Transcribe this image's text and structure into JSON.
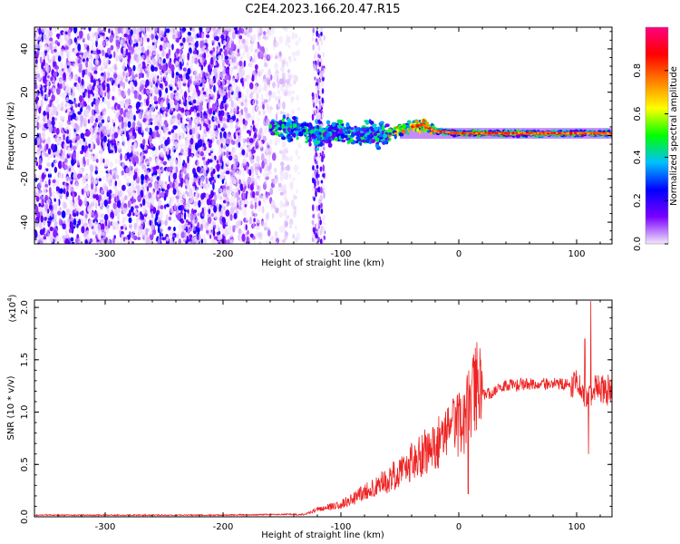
{
  "title": "C2E4.2023.166.20.47.R15",
  "chart_data": [
    {
      "type": "heatmap",
      "name": "spectrogram",
      "xlabel": "Height of straight line (km)",
      "ylabel": "Frequency (Hz)",
      "xlim": [
        -360,
        130
      ],
      "ylim": [
        -50,
        50
      ],
      "xticks": [
        -300,
        -200,
        -100,
        0,
        100
      ],
      "xtick_labels": [
        "-300",
        "-200",
        "-100",
        "0",
        "100"
      ],
      "yticks": [
        -40,
        -20,
        0,
        20,
        40
      ],
      "ytick_labels": [
        "-40",
        "-20",
        "0",
        "20",
        "40"
      ],
      "colorbar": {
        "label": "Normalized spectral amplitude",
        "range": [
          0,
          1
        ],
        "ticks": [
          0.0,
          0.2,
          0.4,
          0.6,
          0.8
        ],
        "tick_labels": [
          "0.0",
          "0.2",
          "0.4",
          "0.6",
          "0.8"
        ],
        "colors": [
          "#f4e8fc",
          "#7a00ff",
          "#0000ff",
          "#00bfff",
          "#00ff00",
          "#ffff00",
          "#ff8000",
          "#ff0000",
          "#ff0080"
        ]
      },
      "signal_line": {
        "x": [
          -160,
          -140,
          -120,
          -100,
          -80,
          -60,
          -40,
          -30,
          -20,
          0,
          20,
          60,
          100,
          130
        ],
        "y": [
          4,
          3,
          0,
          2,
          0,
          1,
          4,
          5,
          2,
          1,
          1,
          1,
          1,
          1
        ],
        "peak_amplitude": 0.9
      }
    },
    {
      "type": "line",
      "name": "snr",
      "xlabel": "Height of straight line (km)",
      "ylabel": "SNR (10 * v/v)",
      "yscale_label": "(x10",
      "yscale_exponent": "4",
      "yscale_suffix": ")",
      "xlim": [
        -360,
        130
      ],
      "ylim": [
        0,
        2.07
      ],
      "xticks": [
        -300,
        -200,
        -100,
        0,
        100
      ],
      "xtick_labels": [
        "-300",
        "-200",
        "-100",
        "0",
        "100"
      ],
      "yticks": [
        0.0,
        0.5,
        1.0,
        1.5,
        2.0
      ],
      "ytick_labels": [
        "0.0",
        "0.5",
        "1.0",
        "1.5",
        "2.0"
      ],
      "line_color": "#ee2222",
      "envelope": {
        "x": [
          -360,
          -200,
          -130,
          -120,
          -100,
          -80,
          -60,
          -40,
          -20,
          0,
          5,
          10,
          20,
          40,
          60,
          80,
          100,
          110,
          115,
          130
        ],
        "y": [
          0.01,
          0.01,
          0.02,
          0.06,
          0.1,
          0.2,
          0.3,
          0.45,
          0.6,
          0.75,
          0.8,
          0.95,
          1.15,
          1.25,
          1.27,
          1.27,
          1.25,
          1.15,
          1.24,
          1.2
        ]
      },
      "spikes": [
        {
          "x": 12,
          "y": 1.52
        },
        {
          "x": 8,
          "y": 0.22
        },
        {
          "x": 107,
          "y": 1.7
        },
        {
          "x": 110,
          "y": 0.6
        },
        {
          "x": 112,
          "y": 2.06
        }
      ]
    }
  ]
}
